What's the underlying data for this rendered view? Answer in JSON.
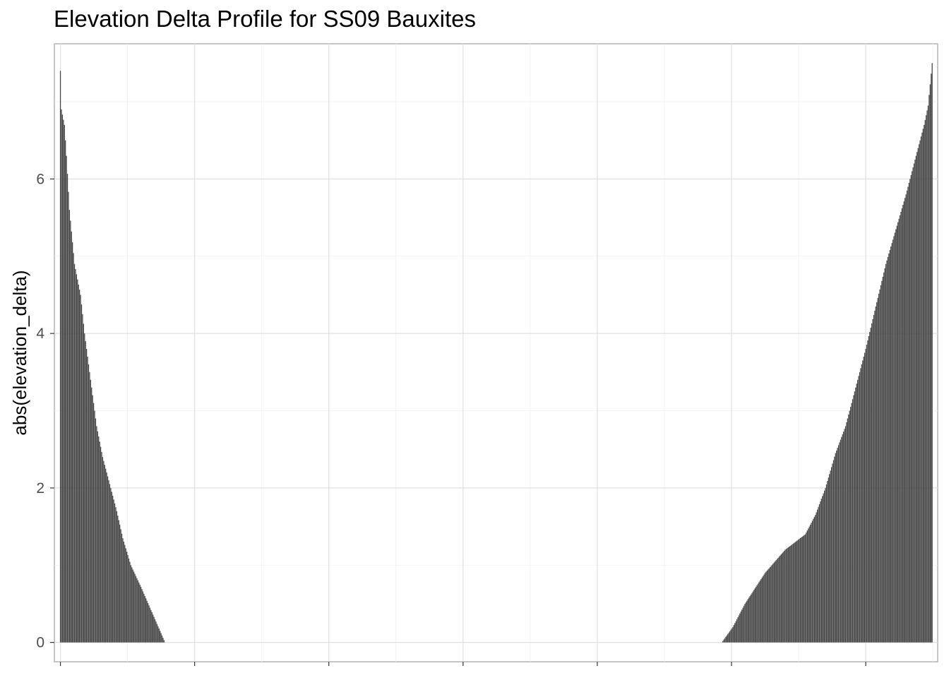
{
  "chart_data": {
    "type": "bar",
    "title": "Elevation Delta Profile for SS09 Bauxites",
    "xlabel": "",
    "ylabel": "abs(elevation_delta)",
    "ylim": [
      -0.25,
      7.75
    ],
    "yticks": [
      0,
      2,
      4,
      6
    ],
    "grid": true,
    "bar_color": "#474747",
    "n_bars": 867,
    "series": [
      {
        "index_start": 0,
        "index_end": 104,
        "profile": [
          [
            0,
            7.4
          ],
          [
            1,
            6.9
          ],
          [
            4,
            6.7
          ],
          [
            6,
            6.3
          ],
          [
            9,
            5.6
          ],
          [
            14,
            4.9
          ],
          [
            20,
            4.5
          ],
          [
            24,
            4.0
          ],
          [
            30,
            3.4
          ],
          [
            36,
            2.8
          ],
          [
            42,
            2.4
          ],
          [
            50,
            2.0
          ],
          [
            56,
            1.7
          ],
          [
            62,
            1.35
          ],
          [
            70,
            1.0
          ],
          [
            80,
            0.72
          ],
          [
            88,
            0.48
          ],
          [
            98,
            0.18
          ],
          [
            104,
            0.0
          ]
        ]
      },
      {
        "index_start": 657,
        "index_end": 866,
        "profile": [
          [
            657,
            0.0
          ],
          [
            668,
            0.2
          ],
          [
            680,
            0.5
          ],
          [
            700,
            0.9
          ],
          [
            720,
            1.2
          ],
          [
            740,
            1.4
          ],
          [
            750,
            1.65
          ],
          [
            760,
            2.0
          ],
          [
            770,
            2.45
          ],
          [
            780,
            2.8
          ],
          [
            790,
            3.3
          ],
          [
            800,
            3.8
          ],
          [
            810,
            4.35
          ],
          [
            820,
            4.9
          ],
          [
            830,
            5.35
          ],
          [
            840,
            5.8
          ],
          [
            850,
            6.3
          ],
          [
            858,
            6.7
          ],
          [
            862,
            6.95
          ],
          [
            866,
            7.5
          ]
        ]
      }
    ]
  }
}
